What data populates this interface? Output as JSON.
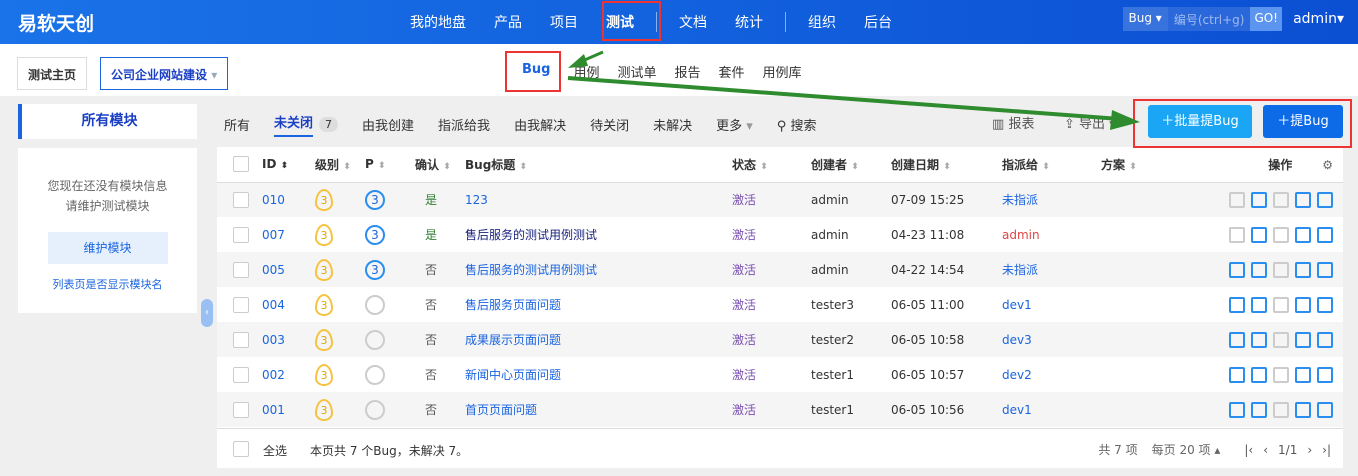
{
  "header": {
    "logo": "易软天创",
    "nav": [
      "我的地盘",
      "产品",
      "项目",
      "测试",
      "文档",
      "统计",
      "组织",
      "后台"
    ],
    "active": "测试",
    "search_type": "Bug",
    "search_placeholder": "编号(ctrl+g)",
    "go": "GO!",
    "user": "admin"
  },
  "breadcrumb": {
    "home": "测试主页",
    "project": "公司企业网站建设"
  },
  "subnav": [
    "Bug",
    "用例",
    "测试单",
    "报告",
    "套件",
    "用例库"
  ],
  "sidebar": {
    "title": "所有模块",
    "empty_msg1": "您现在还没有模块信息",
    "empty_msg2": "请维护测试模块",
    "maintain": "维护模块",
    "link": "列表页是否显示模块名"
  },
  "filters": {
    "tabs": [
      "所有",
      "未关闭",
      "由我创建",
      "指派给我",
      "由我解决",
      "待关闭",
      "未解决",
      "更多"
    ],
    "count": "7",
    "search": "搜索",
    "report": "报表",
    "export": "导出"
  },
  "actions": {
    "batch": "批量提Bug",
    "create": "提Bug",
    "primary_color": "#0d6be8",
    "batch_color": "#1aa6f5"
  },
  "table": {
    "columns": [
      "ID",
      "级别",
      "P",
      "确认",
      "Bug标题",
      "状态",
      "创建者",
      "创建日期",
      "指派给",
      "方案",
      "操作"
    ],
    "rows": [
      {
        "id": "010",
        "sev": "3",
        "pri": "3",
        "confirm": "是",
        "title": "123",
        "status": "激活",
        "creator": "admin",
        "date": "07-09 15:25",
        "assign": "未指派"
      },
      {
        "id": "007",
        "sev": "3",
        "pri": "3",
        "confirm": "是",
        "title": "售后服务的测试用例测试",
        "status": "激活",
        "creator": "admin",
        "date": "04-23 11:08",
        "assign": "admin"
      },
      {
        "id": "005",
        "sev": "3",
        "pri": "3",
        "confirm": "否",
        "title": "售后服务的测试用例测试",
        "status": "激活",
        "creator": "admin",
        "date": "04-22 14:54",
        "assign": "未指派"
      },
      {
        "id": "004",
        "sev": "3",
        "pri": "",
        "confirm": "否",
        "title": "售后服务页面问题",
        "status": "激活",
        "creator": "tester3",
        "date": "06-05 11:00",
        "assign": "dev1"
      },
      {
        "id": "003",
        "sev": "3",
        "pri": "",
        "confirm": "否",
        "title": "成果展示页面问题",
        "status": "激活",
        "creator": "tester2",
        "date": "06-05 10:58",
        "assign": "dev3"
      },
      {
        "id": "002",
        "sev": "3",
        "pri": "",
        "confirm": "否",
        "title": "新闻中心页面问题",
        "status": "激活",
        "creator": "tester1",
        "date": "06-05 10:57",
        "assign": "dev2"
      },
      {
        "id": "001",
        "sev": "3",
        "pri": "",
        "confirm": "否",
        "title": "首页页面问题",
        "status": "激活",
        "creator": "tester1",
        "date": "06-05 10:56",
        "assign": "dev1"
      }
    ]
  },
  "footer": {
    "select_all": "全选",
    "summary": "本页共 7 个Bug，未解决 7。",
    "total": "共 7 项",
    "per_page": "每页 20 项",
    "page": "1/1"
  }
}
